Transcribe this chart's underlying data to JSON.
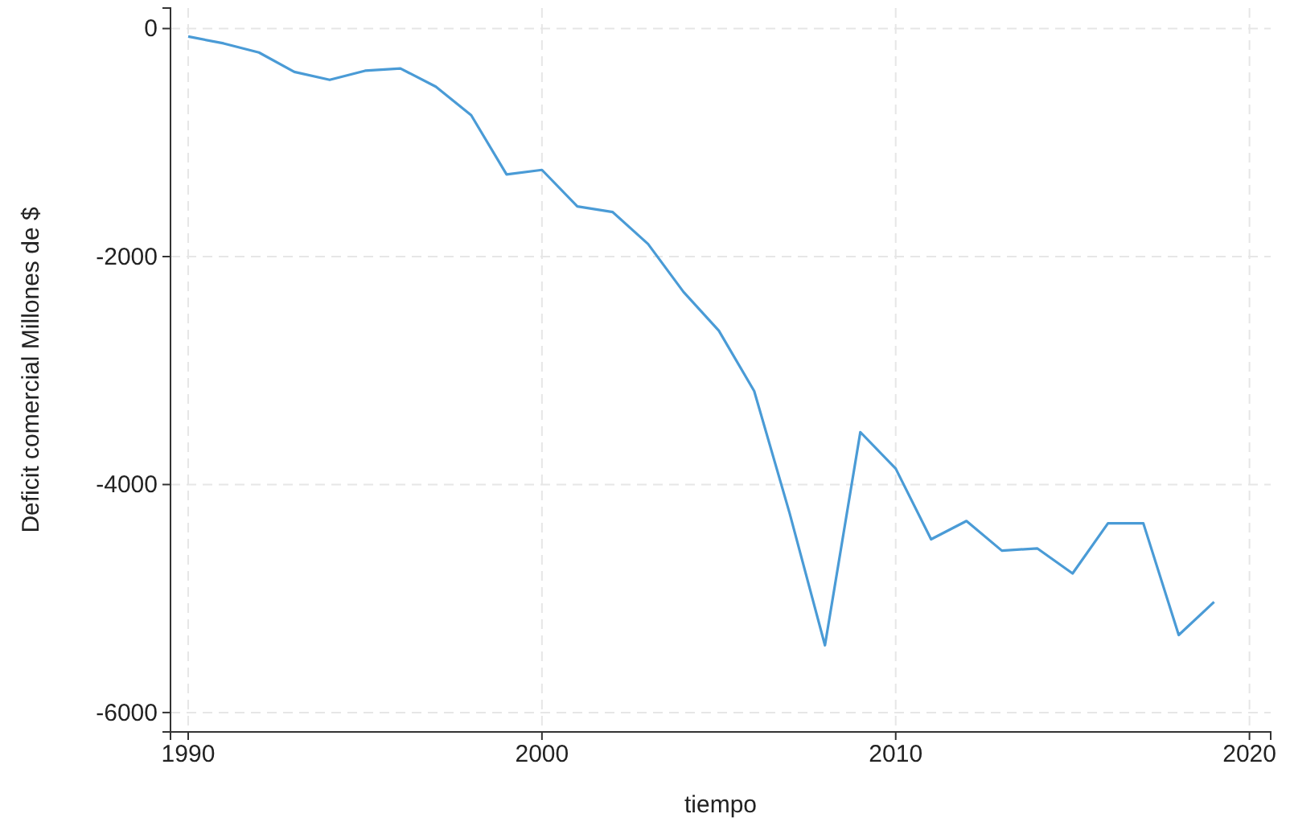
{
  "chart_data": {
    "type": "line",
    "xlabel": "tiempo",
    "ylabel": "Deficit comercial Millones de $",
    "x": [
      1990,
      1991,
      1992,
      1993,
      1994,
      1995,
      1996,
      1997,
      1998,
      1999,
      2000,
      2001,
      2002,
      2003,
      2004,
      2005,
      2006,
      2007,
      2008,
      2009,
      2010,
      2011,
      2012,
      2013,
      2014,
      2015,
      2016,
      2017,
      2018,
      2019
    ],
    "series": [
      {
        "color": "#4a9bd6",
        "values": [
          -70,
          -130,
          -210,
          -380,
          -450,
          -370,
          -350,
          -510,
          -760,
          -1280,
          -1240,
          -1560,
          -1610,
          -1890,
          -2310,
          -2650,
          -3180,
          -4250,
          -5410,
          -3540,
          -3860,
          -4480,
          -4320,
          -4580,
          -4560,
          -4780,
          -4340,
          -4340,
          -5320,
          -5030
        ]
      }
    ],
    "xlim": [
      1989.5,
      2020.6
    ],
    "xticks": [
      1990,
      2000,
      2010,
      2020
    ],
    "ylim": [
      -6170,
      180
    ],
    "yticks": [
      -6000,
      -4000,
      -2000,
      0
    ],
    "grid": true,
    "marker": "none",
    "line_style": "solid"
  }
}
